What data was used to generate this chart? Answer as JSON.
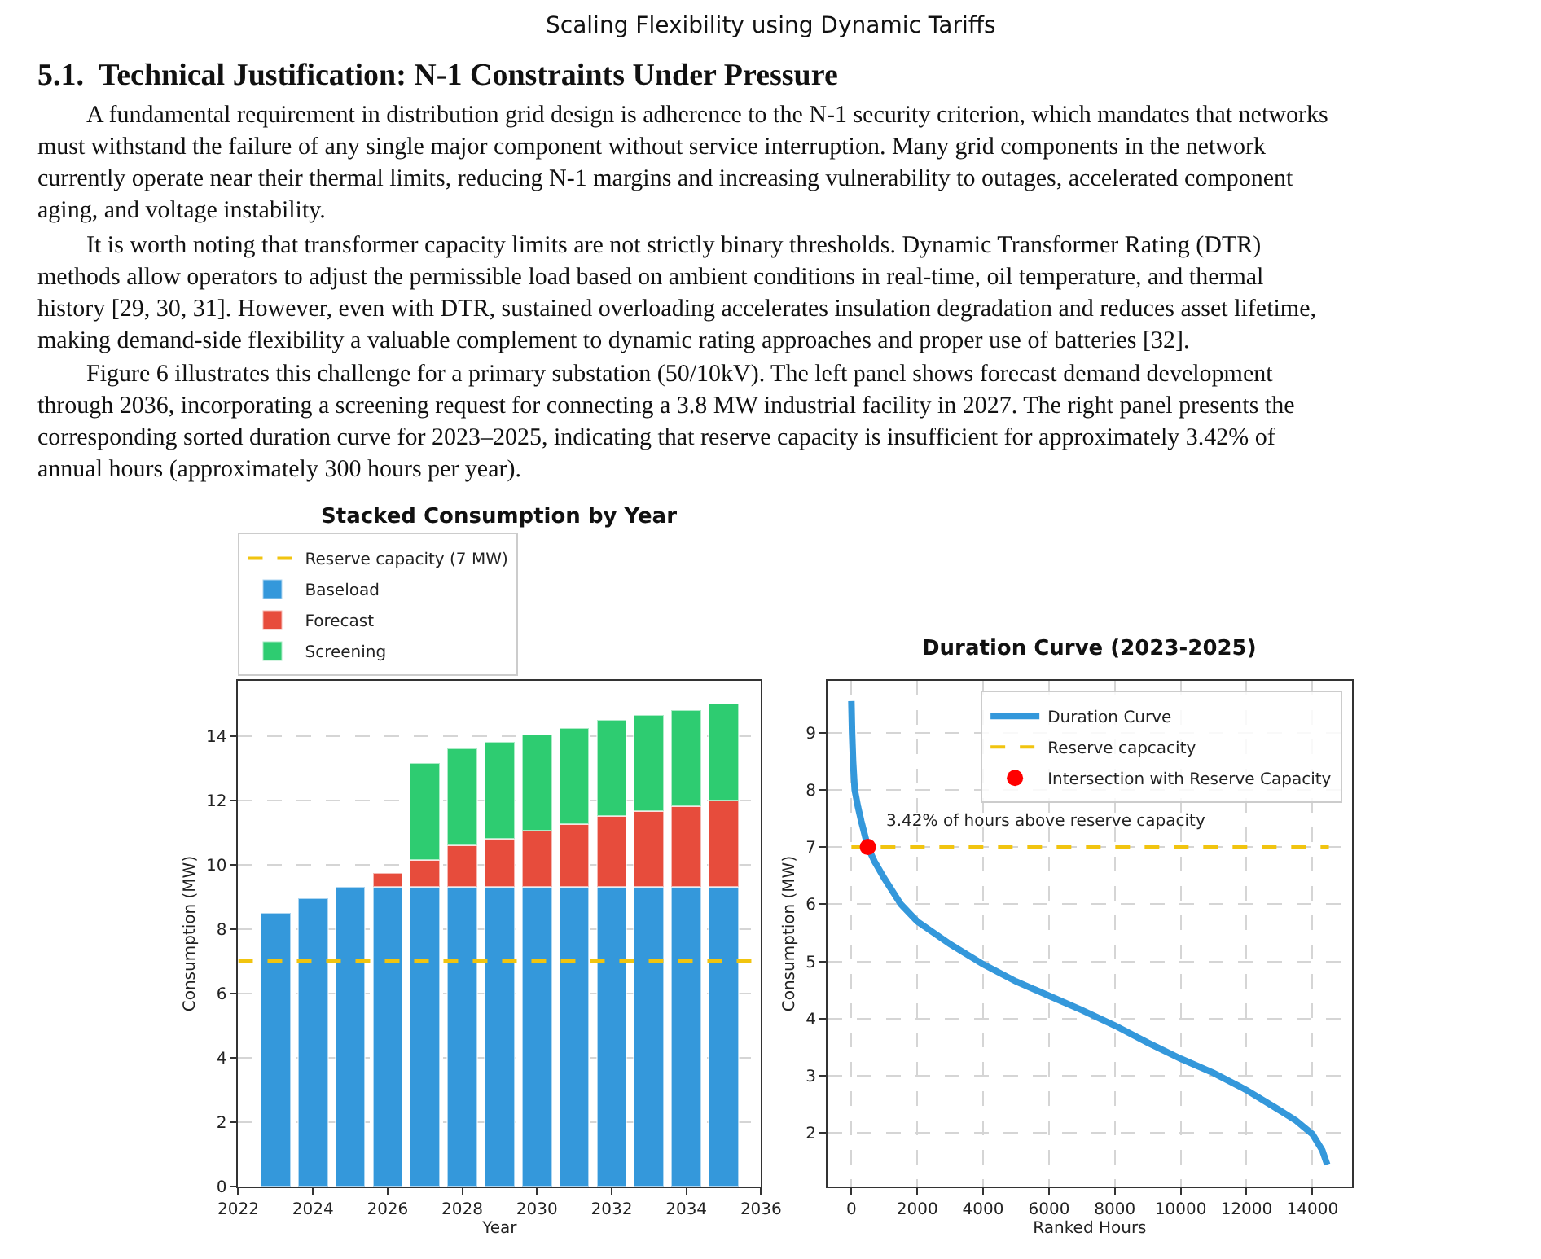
{
  "chart_data": [
    {
      "type": "bar",
      "title": "Stacked Consumption by Year",
      "xlabel": "Year",
      "ylabel": "Consumption (MW)",
      "x": [
        2023,
        2024,
        2025,
        2026,
        2027,
        2028,
        2029,
        2030,
        2031,
        2032,
        2033,
        2034,
        2035
      ],
      "stacked": true,
      "series": [
        {
          "name": "Baseload",
          "color": "#3498db",
          "values": [
            8.5,
            8.95,
            9.3,
            9.3,
            9.3,
            9.3,
            9.3,
            9.3,
            9.3,
            9.3,
            9.3,
            9.3,
            9.3
          ]
        },
        {
          "name": "Forecast",
          "color": "#e74c3c",
          "values": [
            null,
            null,
            null,
            0.43,
            0.85,
            1.3,
            1.5,
            1.75,
            1.95,
            2.2,
            2.35,
            2.5,
            2.7
          ]
        },
        {
          "name": "Screening",
          "color": "#2ecc71",
          "values": [
            null,
            null,
            null,
            null,
            3.0,
            3.0,
            3.0,
            3.0,
            3.0,
            3.0,
            3.0,
            3.0,
            3.0
          ]
        }
      ],
      "xlim": [
        2022,
        2036
      ],
      "xticks": [
        2022,
        2024,
        2026,
        2028,
        2030,
        2032,
        2034,
        2036
      ],
      "ylim": [
        0,
        15.7
      ],
      "yticks": [
        0,
        2,
        4,
        6,
        8,
        10,
        12,
        14
      ],
      "grid": "y",
      "legend": "top",
      "ref_lines": [
        {
          "axis": "y",
          "value": 7,
          "label": "Reserve capacity (7 MW)",
          "color": "#f1c40f",
          "line_style": "dashed"
        }
      ],
      "annotations": [
        "Scaling Flexibility using Dynamic Tariffs",
        "5.1.  Technical Justification: N-1 Constraints Under Pressure",
        "A fundamental requirement in distribution grid design is adherence to the N-1 security criterion, which mandates that networks must withstand the failure of any single major component without service interruption. Many grid components in the network currently operate near their thermal limits, reducing N-1 margins and increasing vulnerability to outages, accelerated component aging, and voltage instability.",
        "It is worth noting that transformer capacity limits are not strictly binary thresholds. Dynamic Transformer Rating (DTR) methods allow operators to adjust the permissible load based on ambient conditions in real-time, oil temperature, and thermal history [29, 30, 31]. However, even with DTR, sustained overloading accelerates insulation degradation and reduces asset lifetime, making demand-side flexibility a valuable complement to dynamic rating approaches and proper use of batteries [32].",
        "Figure 6 illustrates this challenge for a primary substation (50/10kV). The left panel shows forecast demand development through 2036, incorporating a screening request for connecting a 3.8 MW industrial facility in 2027. The right panel presents the corresponding sorted duration curve for 2023–2025, indicating that reserve capacity is insufficient for approximately 3.42% of annual hours (approximately 300 hours per year)."
      ]
    },
    {
      "type": "line",
      "title": "Duration Curve (2023-2025)",
      "xlabel": "Ranked Hours",
      "ylabel": "Consumption (MW)",
      "series": [
        {
          "name": "Duration Curve",
          "color": "#3498db",
          "x": [
            0,
            20,
            50,
            100,
            200,
            300,
            500,
            700,
            1000,
            1500,
            2000,
            3000,
            4000,
            5000,
            6000,
            7000,
            8000,
            9000,
            10000,
            11000,
            12000,
            13000,
            13500,
            14000,
            14300,
            14450
          ],
          "values": [
            9.55,
            9.0,
            8.5,
            8.0,
            7.7,
            7.45,
            7.0,
            6.75,
            6.45,
            6.0,
            5.7,
            5.3,
            4.95,
            4.65,
            4.4,
            4.15,
            3.88,
            3.58,
            3.3,
            3.05,
            2.75,
            2.4,
            2.22,
            1.98,
            1.7,
            1.45
          ]
        },
        {
          "name": "Reserve capcacity",
          "type": "line",
          "line_style": "dashed",
          "color": "#f1c40f",
          "x": [
            0,
            14500
          ],
          "values": [
            7,
            7
          ]
        },
        {
          "name": "Intersection with Reserve Capacity",
          "type": "scatter",
          "color": "#ff0000",
          "x": [
            500
          ],
          "values": [
            7
          ]
        }
      ],
      "xlim": [
        -725,
        15200
      ],
      "xticks": [
        0,
        2000,
        4000,
        6000,
        8000,
        10000,
        12000,
        14000
      ],
      "ylim": [
        1.07,
        9.9
      ],
      "yticks": [
        2,
        3,
        4,
        5,
        6,
        7,
        8,
        9
      ],
      "grid": true,
      "legend": "top right",
      "annotations": [
        "3.42% of hours above reserve capacity"
      ]
    }
  ]
}
